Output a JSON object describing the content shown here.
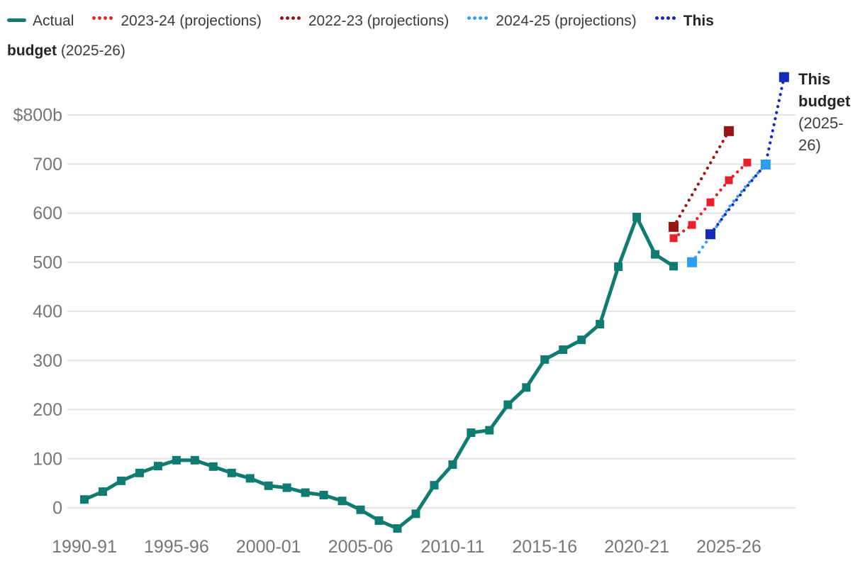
{
  "legend": {
    "items": [
      {
        "label": "Actual",
        "color": "#0f7b71",
        "style": "solid"
      },
      {
        "label": "2023-24 (projections)",
        "color": "#e9202a",
        "style": "dotted"
      },
      {
        "label": "2022-23 (projections)",
        "color": "#9a1414",
        "style": "dotted"
      },
      {
        "label": "2024-25 (projections)",
        "color": "#2d9df4",
        "style": "dotted"
      },
      {
        "label_bold": "This\nbudget",
        "label_rest": " (2025-26)",
        "color": "#1629b8",
        "style": "dotted"
      }
    ]
  },
  "annotation": {
    "bold": "This budget",
    "rest": " (2025-26)"
  },
  "colors": {
    "actual": "#0f7b71",
    "proj_2023_24": "#e9202a",
    "proj_2022_23": "#9a1414",
    "proj_2024_25": "#2d9df4",
    "this_budget": "#1629b8",
    "gridline": "#e5e5e5",
    "axis_text": "#767676"
  },
  "chart_data": {
    "type": "line",
    "title": "",
    "unit": "$ billions",
    "ylabel": "$b",
    "ylim": [
      -60,
      900
    ],
    "grid": "horizontal",
    "legend_position": "top",
    "categories": [
      "1990-91",
      "1991-92",
      "1992-93",
      "1993-94",
      "1994-95",
      "1995-96",
      "1996-97",
      "1997-98",
      "1998-99",
      "1999-00",
      "2000-01",
      "2001-02",
      "2002-03",
      "2003-04",
      "2004-05",
      "2005-06",
      "2006-07",
      "2007-08",
      "2008-09",
      "2009-10",
      "2010-11",
      "2011-12",
      "2012-13",
      "2013-14",
      "2014-15",
      "2015-16",
      "2016-17",
      "2017-18",
      "2018-19",
      "2019-20",
      "2020-21",
      "2021-22",
      "2022-23",
      "2023-24",
      "2024-25",
      "2025-26",
      "2026-27",
      "2027-28",
      "2028-29"
    ],
    "x_ticks": [
      {
        "index": 0,
        "label": "1990-91"
      },
      {
        "index": 5,
        "label": "1995-96"
      },
      {
        "index": 10,
        "label": "2000-01"
      },
      {
        "index": 15,
        "label": "2005-06"
      },
      {
        "index": 20,
        "label": "2010-11"
      },
      {
        "index": 25,
        "label": "2015-16"
      },
      {
        "index": 30,
        "label": "2020-21"
      },
      {
        "index": 35,
        "label": "2025-26"
      }
    ],
    "y_ticks": [
      {
        "value": 800,
        "label": "$800b"
      },
      {
        "value": 700,
        "label": "700"
      },
      {
        "value": 600,
        "label": "600"
      },
      {
        "value": 500,
        "label": "500"
      },
      {
        "value": 400,
        "label": "400"
      },
      {
        "value": 300,
        "label": "300"
      },
      {
        "value": 200,
        "label": "200"
      },
      {
        "value": 100,
        "label": "100"
      },
      {
        "value": 0,
        "label": "0"
      }
    ],
    "series": [
      {
        "name": "Actual",
        "color": "#0f7b71",
        "style": "solid",
        "start_index": 0,
        "markers": "all",
        "values": [
          17,
          33,
          55,
          71,
          85,
          97,
          97,
          84,
          71,
          60,
          45,
          41,
          31,
          26,
          14,
          -4,
          -26,
          -42,
          -12,
          46,
          88,
          153,
          158,
          210,
          245,
          302,
          322,
          342,
          374,
          491,
          592,
          516,
          492
        ]
      },
      {
        "name": "2023-24 (projections)",
        "color": "#e9202a",
        "style": "dotted",
        "start_index": 32,
        "markers": "all",
        "values": [
          549,
          576,
          622,
          667,
          703
        ]
      },
      {
        "name": "2022-23 (projections)",
        "color": "#9a1414",
        "style": "dotted",
        "start_index": 32,
        "markers": "ends",
        "values": [
          572,
          637,
          702,
          767
        ]
      },
      {
        "name": "2024-25 (projections)",
        "color": "#2d9df4",
        "style": "dotted",
        "start_index": 33,
        "markers": "ends",
        "values": [
          500,
          553,
          612,
          658,
          699
        ]
      },
      {
        "name": "This budget (2025-26)",
        "color": "#1629b8",
        "style": "dotted",
        "start_index": 34,
        "markers": "ends",
        "values": [
          557,
          607,
          655,
          700,
          877
        ]
      }
    ]
  }
}
